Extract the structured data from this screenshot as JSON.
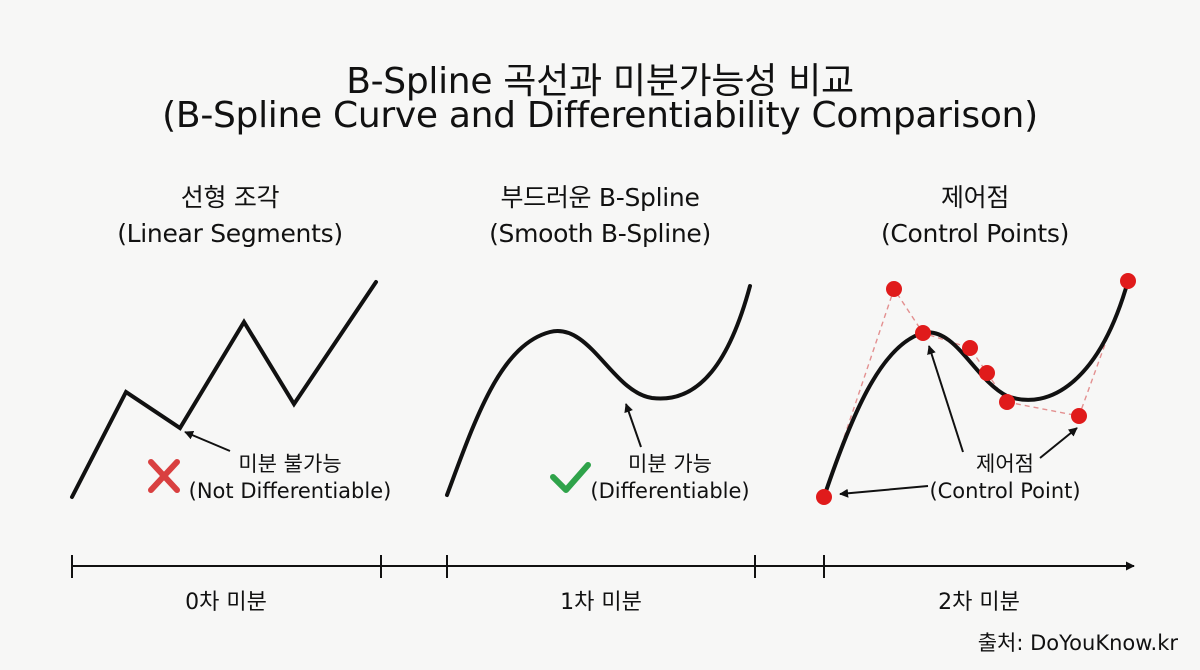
{
  "title": {
    "korean": "B-Spline 곡선과 미분가능성 비교",
    "english": "(B-Spline Curve and Differentiability Comparison)"
  },
  "panels": [
    {
      "title_ko": "선형 조각",
      "title_en": "(Linear Segments)",
      "annotation_ko": "미분 불가능",
      "annotation_en": "(Not Differentiable)",
      "status_icon": "cross-icon",
      "status_color": "#d94040"
    },
    {
      "title_ko": "부드러운 B-Spline",
      "title_en": "(Smooth B-Spline)",
      "annotation_ko": "미분 가능",
      "annotation_en": "(Differentiable)",
      "status_icon": "check-icon",
      "status_color": "#2fa34a"
    },
    {
      "title_ko": "제어점",
      "title_en": "(Control Points)",
      "annotation_ko": "제어점",
      "annotation_en": "(Control Point)",
      "point_color": "#e01b1b",
      "polygon_color": "#e39090"
    }
  ],
  "axis": {
    "labels": [
      "0차 미분",
      "1차 미분",
      "2차 미분"
    ]
  },
  "source": "출처: DoYouKnow.kr"
}
